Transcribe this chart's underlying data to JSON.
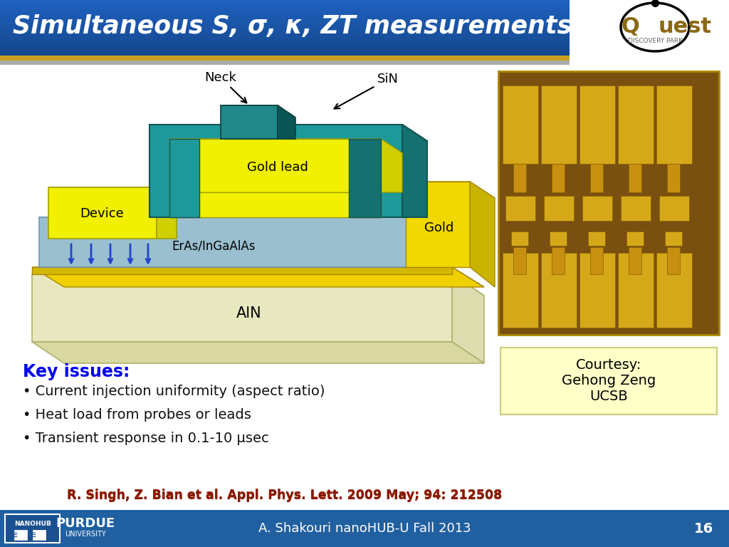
{
  "title": "Simultaneous S, σ, κ, ZT measurements",
  "header_bg_color": "#1A6AAF",
  "header_text_color": "#FFFFFF",
  "footer_bg_color": "#2060A0",
  "footer_text": "A. Shakouri nanoHUB-U Fall 2013",
  "footer_page": "16",
  "reference_text": "R. Singh, Z. Bian et al. Appl. Phys. Lett. 2009 May; 94: 212508",
  "reference_color": "#8B1A00",
  "key_issues_title": "Key issues:",
  "key_issues_color": "#0000EE",
  "bullet_items": [
    "Current injection uniformity (aspect ratio)",
    "Heat load from probes or leads",
    "Transient response in 0.1-10 μsec"
  ],
  "bullet_color": "#111111",
  "courtesy_text": "Courtesy:\nGehong Zeng\nUCSB",
  "courtesy_bg": "#FFFFC8",
  "diagram_labels": {
    "neck": "Neck",
    "sin": "SiN",
    "device": "Device",
    "gold_lead": "Gold lead",
    "eras": "ErAs/InGaAlAs",
    "gold": "Gold",
    "aln": "AlN"
  },
  "colors": {
    "aln_top": "#FFFFC0",
    "aln_front": "#E8E8C0",
    "aln_right": "#DDDDB0",
    "eras_top": "#B8D8E8",
    "eras_front": "#9ABFCF",
    "eras_right": "#80AABC",
    "yellow_top": "#FFFF00",
    "yellow_front": "#F0F000",
    "yellow_right": "#D0D000",
    "teal_top": "#2A8A8A",
    "teal_front": "#1E9999",
    "teal_right": "#157070",
    "arrow_blue": "#2244CC",
    "gold_stripe_top": "#F0D000",
    "gold_stripe_front": "#D4B800",
    "gold_stripe_right": "#B89C00"
  },
  "background_color": "#FFFFFF",
  "header_stripe_gold": "#C8A020",
  "header_stripe_silver": "#AAAAAA"
}
